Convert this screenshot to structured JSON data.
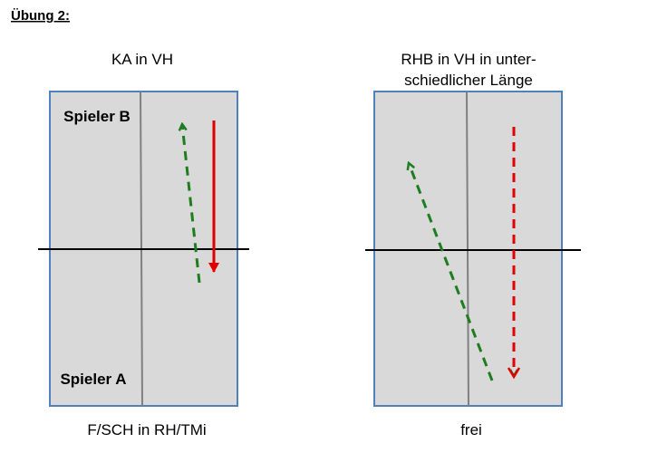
{
  "header": {
    "title": "Übung 2:"
  },
  "diagrams": [
    {
      "caption": [
        "KA in VH"
      ],
      "top_player": "Spieler B",
      "bottom_player": "Spieler A",
      "footer": "F/SCH in RH/TMi"
    },
    {
      "caption": [
        "RHB in VH in unter-",
        "schiedlicher Länge"
      ],
      "footer": "frei"
    }
  ]
}
